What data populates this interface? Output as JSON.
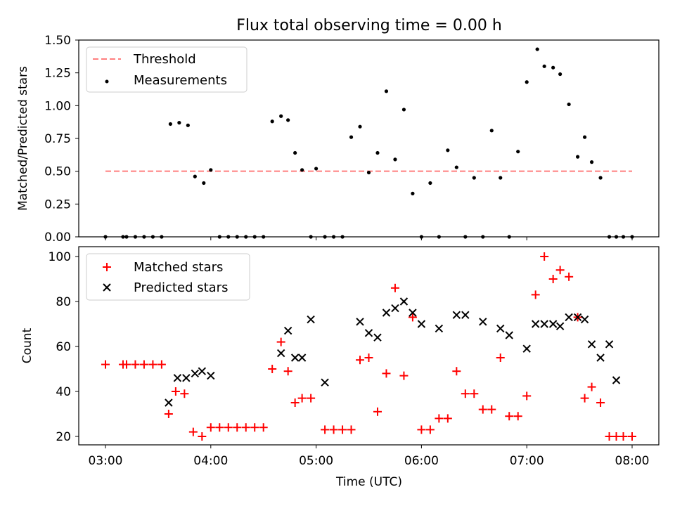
{
  "title": "Flux total observing time = 0.00 h",
  "chart_data": [
    {
      "type": "scatter",
      "ylabel": "Matched/Predicted stars",
      "xlabel": "",
      "ylim": [
        0,
        1.5
      ],
      "yticks": [
        "0.00",
        "0.25",
        "0.50",
        "0.75",
        "1.00",
        "1.25",
        "1.50"
      ],
      "yticks_values": [
        0,
        0.25,
        0.5,
        0.75,
        1.0,
        1.25,
        1.5
      ],
      "legend_position": "top-left",
      "legend": {
        "threshold_label": "Threshold",
        "measurements_label": "Measurements"
      },
      "threshold": {
        "value": 0.5,
        "x_start": "03:00",
        "x_end": "08:00",
        "color": "#ff7f7f"
      },
      "series": [
        {
          "name": "Measurements",
          "color": "#000000",
          "x": [
            "03:00",
            "03:10",
            "03:12",
            "03:17",
            "03:22",
            "03:27",
            "03:32",
            "03:37",
            "03:42",
            "03:47",
            "03:51",
            "03:56",
            "04:00",
            "04:05",
            "04:10",
            "04:15",
            "04:20",
            "04:25",
            "04:30",
            "04:35",
            "04:40",
            "04:44",
            "04:48",
            "04:52",
            "04:57",
            "05:00",
            "05:05",
            "05:10",
            "05:15",
            "05:20",
            "05:25",
            "05:30",
            "05:35",
            "05:40",
            "05:45",
            "05:50",
            "05:55",
            "06:00",
            "06:05",
            "06:10",
            "06:15",
            "06:20",
            "06:25",
            "06:30",
            "06:35",
            "06:40",
            "06:45",
            "06:50",
            "06:55",
            "07:00",
            "07:06",
            "07:10",
            "07:15",
            "07:19",
            "07:24",
            "07:29",
            "07:33",
            "07:37",
            "07:42",
            "07:47",
            "07:51",
            "07:55",
            "08:00"
          ],
          "y": [
            0,
            0,
            0,
            0,
            0,
            0,
            0,
            0.86,
            0.87,
            0.85,
            0.46,
            0.41,
            0.51,
            0,
            0,
            0,
            0,
            0,
            0,
            0.88,
            0.92,
            0.89,
            0.64,
            0.51,
            0,
            0.52,
            0,
            0,
            0,
            0.76,
            0.84,
            0.49,
            0.64,
            1.11,
            0.59,
            0.97,
            0.33,
            0,
            0.41,
            0,
            0.66,
            0.53,
            0,
            0.45,
            0,
            0.81,
            0.45,
            0,
            0.65,
            1.18,
            1.43,
            1.3,
            1.29,
            1.24,
            1.01,
            0.61,
            0.76,
            0.57,
            0.45,
            0,
            0,
            0,
            0
          ]
        }
      ]
    },
    {
      "type": "scatter",
      "xlabel": "Time (UTC)",
      "ylabel": "Count",
      "ylim": [
        15,
        103
      ],
      "yticks": [
        "20",
        "40",
        "60",
        "80",
        "100"
      ],
      "yticks_values": [
        20,
        40,
        60,
        80,
        100
      ],
      "xticks": [
        "03:00",
        "04:00",
        "05:00",
        "06:00",
        "07:00",
        "08:00"
      ],
      "xlim": [
        "02:45",
        "08:15"
      ],
      "legend_position": "top-left",
      "series": [
        {
          "name": "Matched stars",
          "marker": "plus",
          "color": "#ff0000",
          "x": [
            "03:00",
            "03:10",
            "03:12",
            "03:17",
            "03:22",
            "03:27",
            "03:32",
            "03:36",
            "03:40",
            "03:45",
            "03:50",
            "03:55",
            "04:00",
            "04:05",
            "04:10",
            "04:15",
            "04:20",
            "04:25",
            "04:30",
            "04:35",
            "04:40",
            "04:44",
            "04:48",
            "04:52",
            "04:57",
            "05:05",
            "05:10",
            "05:15",
            "05:20",
            "05:25",
            "05:30",
            "05:35",
            "05:40",
            "05:45",
            "05:50",
            "05:55",
            "06:00",
            "06:05",
            "06:10",
            "06:15",
            "06:20",
            "06:25",
            "06:30",
            "06:35",
            "06:40",
            "06:45",
            "06:50",
            "06:55",
            "07:00",
            "07:05",
            "07:10",
            "07:15",
            "07:19",
            "07:24",
            "07:29",
            "07:33",
            "07:37",
            "07:42",
            "07:47",
            "07:51",
            "07:55",
            "08:00"
          ],
          "y": [
            52,
            52,
            52,
            52,
            52,
            52,
            52,
            30,
            40,
            39,
            22,
            20,
            24,
            24,
            24,
            24,
            24,
            24,
            24,
            50,
            62,
            49,
            35,
            37,
            37,
            23,
            23,
            23,
            23,
            54,
            55,
            31,
            48,
            86,
            47,
            73,
            23,
            23,
            28,
            28,
            49,
            39,
            39,
            32,
            32,
            55,
            29,
            29,
            38,
            83,
            100,
            90,
            94,
            91,
            73,
            37,
            42,
            35,
            20,
            20,
            20,
            20
          ]
        },
        {
          "name": "Predicted stars",
          "marker": "x",
          "color": "#000000",
          "x": [
            "03:36",
            "03:41",
            "03:46",
            "03:51",
            "03:55",
            "04:00",
            "04:40",
            "04:44",
            "04:48",
            "04:52",
            "04:57",
            "05:05",
            "05:25",
            "05:30",
            "05:35",
            "05:40",
            "05:45",
            "05:50",
            "05:55",
            "06:00",
            "06:10",
            "06:20",
            "06:25",
            "06:35",
            "06:45",
            "06:50",
            "07:00",
            "07:05",
            "07:10",
            "07:15",
            "07:19",
            "07:24",
            "07:29",
            "07:33",
            "07:37",
            "07:42",
            "07:47",
            "07:51",
            "07:55",
            "08:00"
          ],
          "y": [
            35,
            46,
            46,
            48,
            49,
            47,
            57,
            67,
            55,
            55,
            72,
            44,
            71,
            66,
            64,
            75,
            77,
            80,
            75,
            70,
            68,
            74,
            74,
            71,
            68,
            65,
            59,
            70,
            70,
            70,
            69,
            73,
            73,
            72,
            61,
            55,
            61,
            45,
            null,
            null
          ]
        }
      ]
    }
  ]
}
